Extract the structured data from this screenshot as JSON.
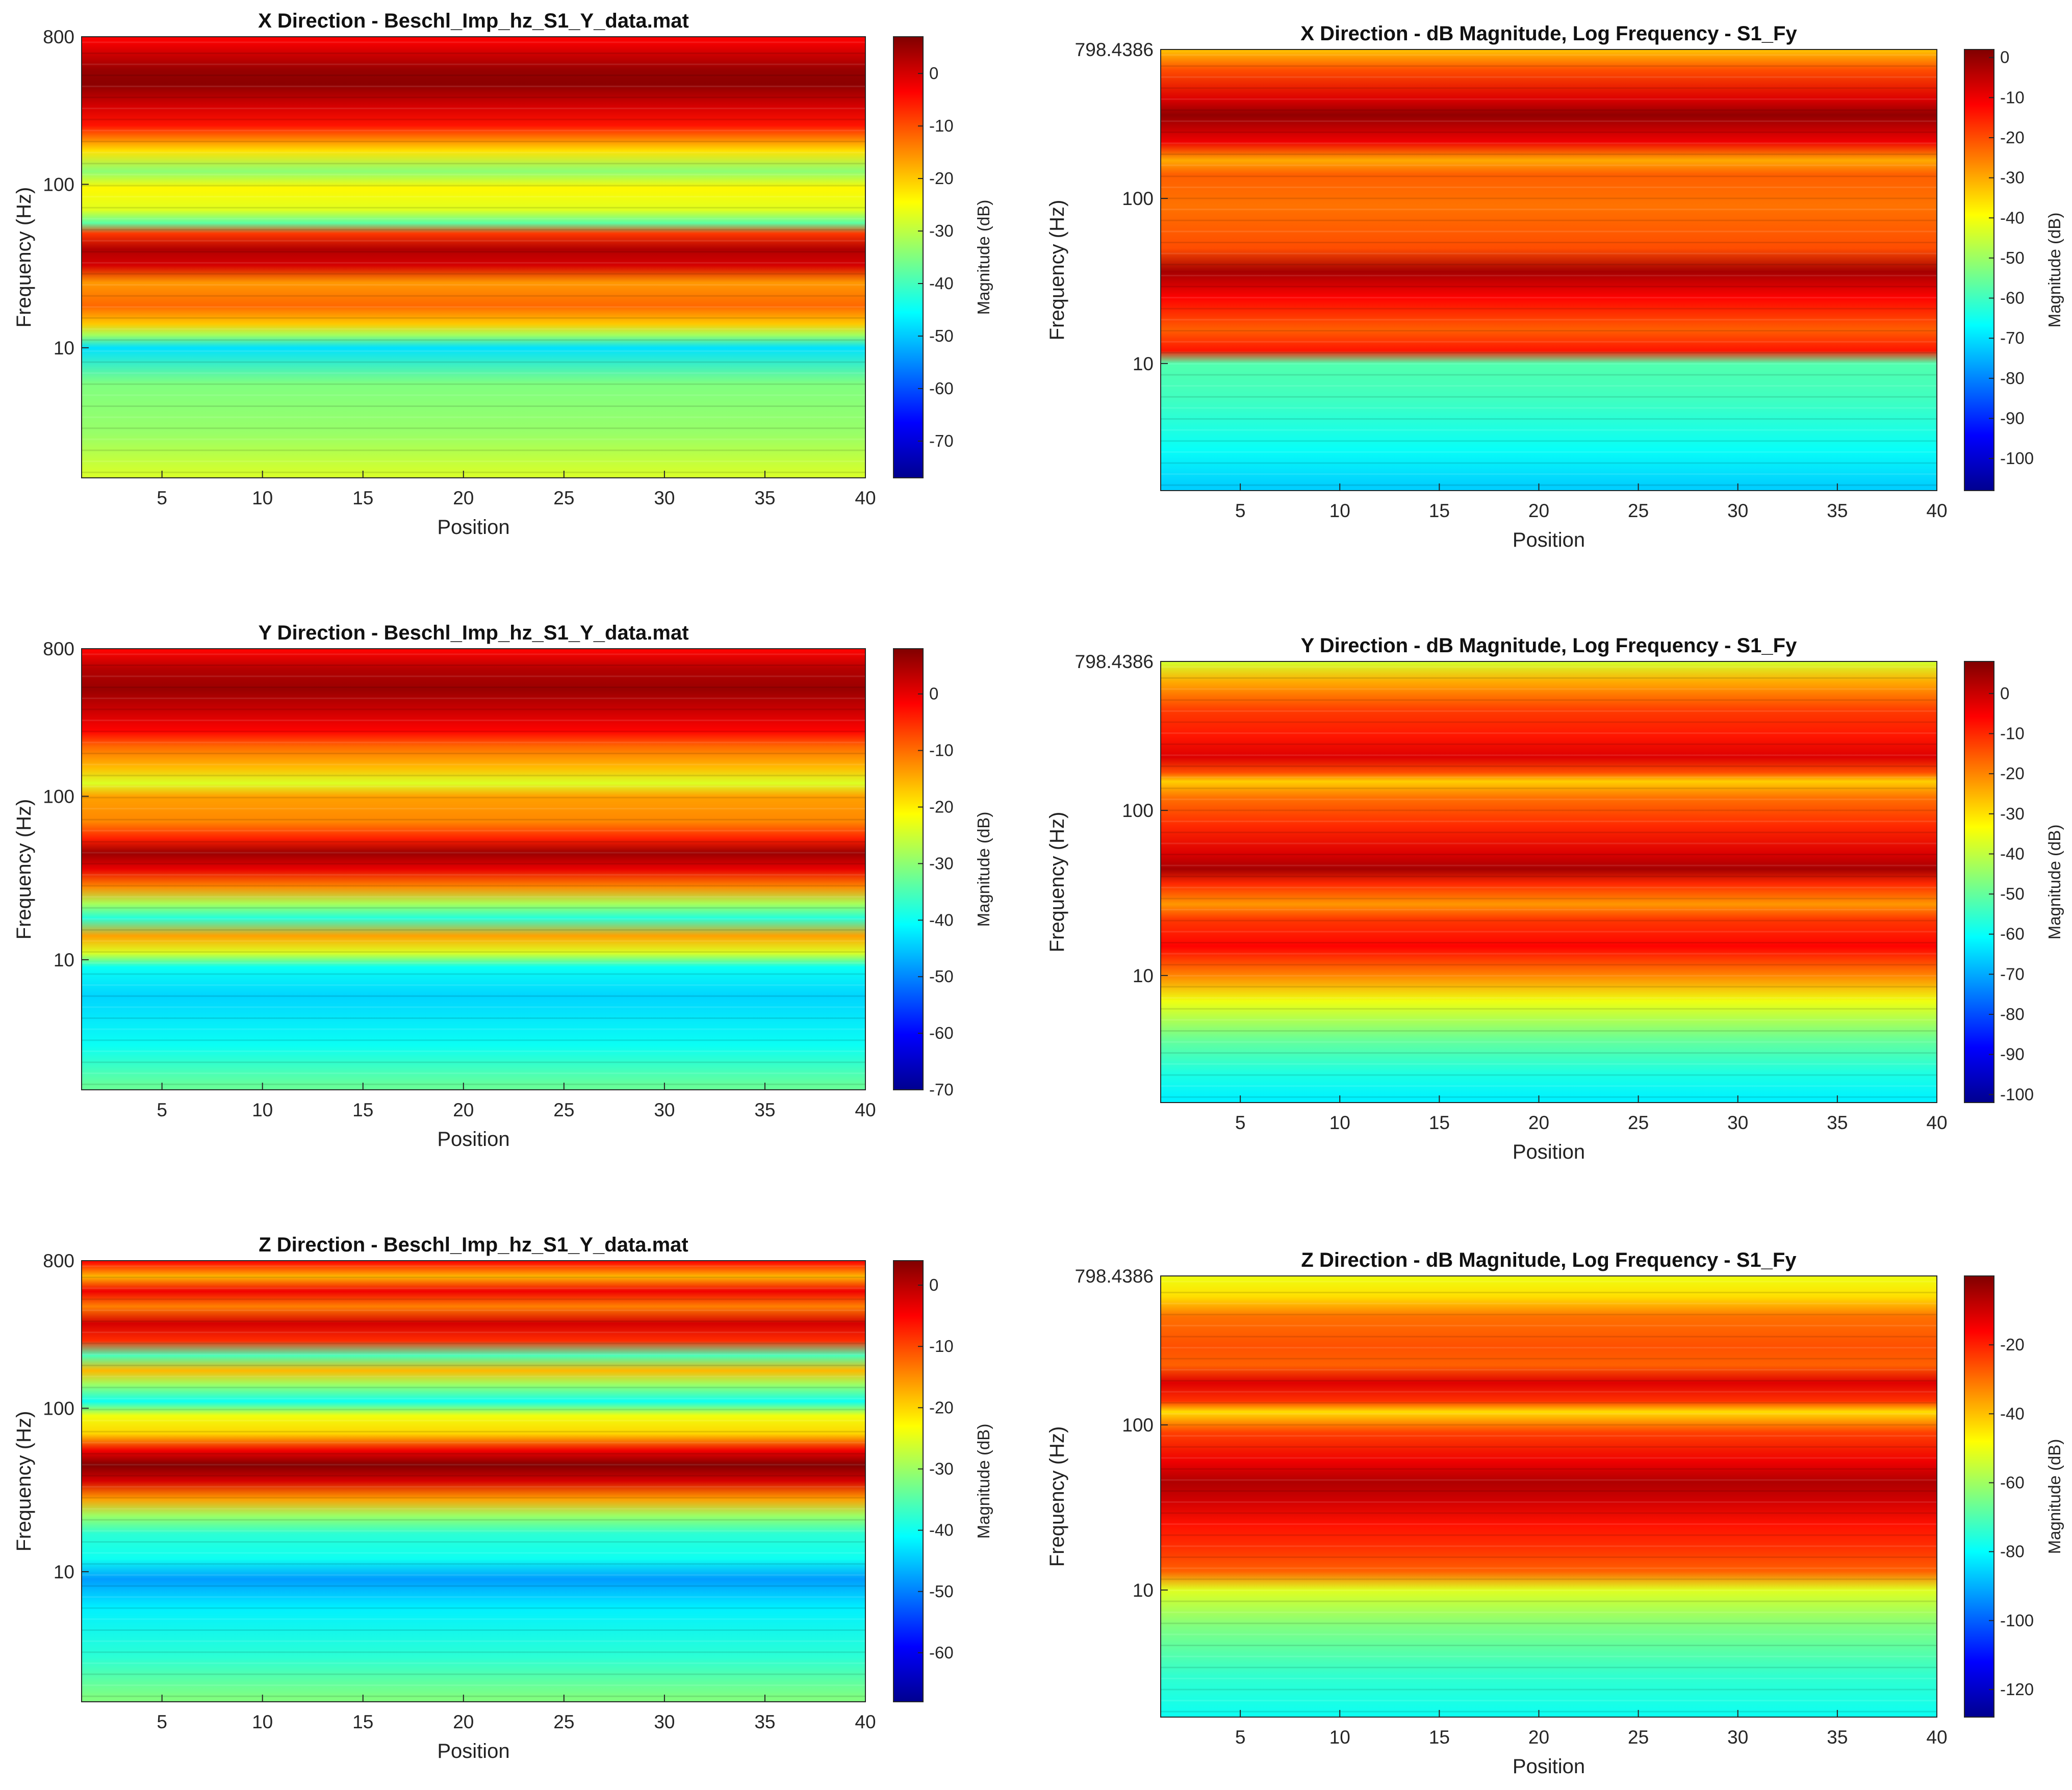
{
  "figure": {
    "background": "#ffffff"
  },
  "colormap": [
    "#00008f",
    "#0000ff",
    "#0080ff",
    "#00ffff",
    "#80ff80",
    "#ffff00",
    "#ff8000",
    "#ff0000",
    "#800000"
  ],
  "chart_data": [
    {
      "type": "heatmap",
      "title": "X Direction - Beschl_Imp_hz_S1_Y_data.mat",
      "xlabel": "Position",
      "ylabel": "Frequency (Hz)",
      "xlim": [
        1,
        40
      ],
      "yscale": "log",
      "ylim": [
        1.6,
        800
      ],
      "xticks": [
        5,
        10,
        15,
        20,
        25,
        30,
        35,
        40
      ],
      "xticklabels": [
        "5",
        "10",
        "15",
        "20",
        "25",
        "30",
        "35",
        "40"
      ],
      "yticks": [
        800,
        100,
        10
      ],
      "yticklabels": [
        "800",
        "100",
        "10"
      ],
      "colorbar": {
        "label": "Magnitude (dB)",
        "range": [
          -77,
          7
        ],
        "ticks": [
          0,
          -10,
          -20,
          -30,
          -40,
          -50,
          -60,
          -70
        ],
        "ticklabels": [
          "0",
          "-10",
          "-20",
          "-30",
          "-40",
          "-50",
          "-60",
          "-70"
        ]
      },
      "bands": [
        {
          "f": 750,
          "level": -3
        },
        {
          "f": 500,
          "level": 5
        },
        {
          "f": 410,
          "level": 6
        },
        {
          "f": 300,
          "level": 0
        },
        {
          "f": 230,
          "level": -5
        },
        {
          "f": 190,
          "level": -14
        },
        {
          "f": 160,
          "level": -22
        },
        {
          "f": 120,
          "level": -34
        },
        {
          "f": 95,
          "level": -24
        },
        {
          "f": 70,
          "level": -27
        },
        {
          "f": 58,
          "level": -38
        },
        {
          "f": 50,
          "level": -8
        },
        {
          "f": 40,
          "level": 3
        },
        {
          "f": 32,
          "level": 0
        },
        {
          "f": 25,
          "level": -16
        },
        {
          "f": 18,
          "level": -12
        },
        {
          "f": 14,
          "level": -20
        },
        {
          "f": 12,
          "level": -32
        },
        {
          "f": 10,
          "level": -48
        },
        {
          "f": 6,
          "level": -35
        },
        {
          "f": 3,
          "level": -33
        },
        {
          "f": 1.7,
          "level": -28
        }
      ]
    },
    {
      "type": "heatmap",
      "title": "X Direction - dB Magnitude, Log Frequency - S1_Fy",
      "xlabel": "Position",
      "ylabel": "Frequency (Hz)",
      "xlim": [
        1,
        40
      ],
      "yscale": "log",
      "ylim": [
        1.7,
        798.4386
      ],
      "xticks": [
        5,
        10,
        15,
        20,
        25,
        30,
        35,
        40
      ],
      "xticklabels": [
        "5",
        "10",
        "15",
        "20",
        "25",
        "30",
        "35",
        "40"
      ],
      "yticks": [
        798.4386,
        100,
        10
      ],
      "yticklabels": [
        "798.4386",
        "100",
        "10"
      ],
      "colorbar": {
        "label": "Magnitude (dB)",
        "range": [
          -108,
          2
        ],
        "ticks": [
          0,
          -10,
          -20,
          -30,
          -40,
          -50,
          -60,
          -70,
          -80,
          -90,
          -100
        ],
        "ticklabels": [
          "0",
          "-10",
          "-20",
          "-30",
          "-40",
          "-50",
          "-60",
          "-70",
          "-80",
          "-90",
          "-100"
        ]
      },
      "bands": [
        {
          "f": 780,
          "level": -32
        },
        {
          "f": 600,
          "level": -20
        },
        {
          "f": 400,
          "level": -8
        },
        {
          "f": 320,
          "level": 0
        },
        {
          "f": 220,
          "level": -10
        },
        {
          "f": 170,
          "level": -30
        },
        {
          "f": 140,
          "level": -22
        },
        {
          "f": 90,
          "level": -24
        },
        {
          "f": 50,
          "level": -20
        },
        {
          "f": 36,
          "level": -2
        },
        {
          "f": 25,
          "level": -12
        },
        {
          "f": 16,
          "level": -22
        },
        {
          "f": 12,
          "level": -14
        },
        {
          "f": 10,
          "level": -58
        },
        {
          "f": 6,
          "level": -60
        },
        {
          "f": 3,
          "level": -66
        },
        {
          "f": 1.8,
          "level": -72
        }
      ]
    },
    {
      "type": "heatmap",
      "title": "Y Direction - Beschl_Imp_hz_S1_Y_data.mat",
      "xlabel": "Position",
      "ylabel": "Frequency (Hz)",
      "xlim": [
        1,
        40
      ],
      "yscale": "log",
      "ylim": [
        1.6,
        800
      ],
      "xticks": [
        5,
        10,
        15,
        20,
        25,
        30,
        35,
        40
      ],
      "xticklabels": [
        "5",
        "10",
        "15",
        "20",
        "25",
        "30",
        "35",
        "40"
      ],
      "yticks": [
        800,
        100,
        10
      ],
      "yticklabels": [
        "800",
        "100",
        "10"
      ],
      "colorbar": {
        "label": "Magnitude (dB)",
        "range": [
          -70,
          8
        ],
        "ticks": [
          0,
          -10,
          -20,
          -30,
          -40,
          -50,
          -60,
          -70
        ],
        "ticklabels": [
          "0",
          "-10",
          "-20",
          "-30",
          "-40",
          "-50",
          "-60",
          "-70"
        ]
      },
      "bands": [
        {
          "f": 780,
          "level": -2
        },
        {
          "f": 600,
          "level": 4
        },
        {
          "f": 450,
          "level": 6
        },
        {
          "f": 330,
          "level": 2
        },
        {
          "f": 250,
          "level": -2
        },
        {
          "f": 200,
          "level": -10
        },
        {
          "f": 150,
          "level": -16
        },
        {
          "f": 120,
          "level": -24
        },
        {
          "f": 100,
          "level": -14
        },
        {
          "f": 70,
          "level": -12
        },
        {
          "f": 55,
          "level": -4
        },
        {
          "f": 45,
          "level": 6
        },
        {
          "f": 36,
          "level": 0
        },
        {
          "f": 28,
          "level": -12
        },
        {
          "f": 22,
          "level": -28
        },
        {
          "f": 18,
          "level": -38
        },
        {
          "f": 14,
          "level": -14
        },
        {
          "f": 11,
          "level": -24
        },
        {
          "f": 9,
          "level": -40
        },
        {
          "f": 6,
          "level": -44
        },
        {
          "f": 3,
          "level": -40
        },
        {
          "f": 1.7,
          "level": -33
        }
      ]
    },
    {
      "type": "heatmap",
      "title": "Y Direction - dB Magnitude, Log Frequency - S1_Fy",
      "xlabel": "Position",
      "ylabel": "Frequency (Hz)",
      "xlim": [
        1,
        40
      ],
      "yscale": "log",
      "ylim": [
        1.7,
        798.4386
      ],
      "xticks": [
        5,
        10,
        15,
        20,
        25,
        30,
        35,
        40
      ],
      "xticklabels": [
        "5",
        "10",
        "15",
        "20",
        "25",
        "30",
        "35",
        "40"
      ],
      "yticks": [
        798.4386,
        100,
        10
      ],
      "yticklabels": [
        "798.4386",
        "100",
        "10"
      ],
      "colorbar": {
        "label": "Magnitude (dB)",
        "range": [
          -102,
          8
        ],
        "ticks": [
          0,
          -10,
          -20,
          -30,
          -40,
          -50,
          -60,
          -70,
          -80,
          -90,
          -100
        ],
        "ticklabels": [
          "0",
          "-10",
          "-20",
          "-30",
          "-40",
          "-50",
          "-60",
          "-70",
          "-80",
          "-90",
          "-100"
        ]
      },
      "bands": [
        {
          "f": 790,
          "level": -38
        },
        {
          "f": 600,
          "level": -24
        },
        {
          "f": 400,
          "level": -12
        },
        {
          "f": 280,
          "level": -8
        },
        {
          "f": 210,
          "level": -2
        },
        {
          "f": 170,
          "level": -14
        },
        {
          "f": 150,
          "level": -28
        },
        {
          "f": 120,
          "level": -18
        },
        {
          "f": 80,
          "level": -10
        },
        {
          "f": 55,
          "level": -2
        },
        {
          "f": 44,
          "level": 4
        },
        {
          "f": 36,
          "level": -10
        },
        {
          "f": 27,
          "level": -22
        },
        {
          "f": 22,
          "level": -12
        },
        {
          "f": 15,
          "level": -6
        },
        {
          "f": 10,
          "level": -20
        },
        {
          "f": 7,
          "level": -35
        },
        {
          "f": 4,
          "level": -50
        },
        {
          "f": 2.5,
          "level": -58
        },
        {
          "f": 1.8,
          "level": -62
        }
      ]
    },
    {
      "type": "heatmap",
      "title": "Z Direction - Beschl_Imp_hz_S1_Y_data.mat",
      "xlabel": "Position",
      "ylabel": "Frequency (Hz)",
      "xlim": [
        1,
        40
      ],
      "yscale": "log",
      "ylim": [
        1.6,
        800
      ],
      "xticks": [
        5,
        10,
        15,
        20,
        25,
        30,
        35,
        40
      ],
      "xticklabels": [
        "5",
        "10",
        "15",
        "20",
        "25",
        "30",
        "35",
        "40"
      ],
      "yticks": [
        800,
        100,
        10
      ],
      "yticklabels": [
        "800",
        "100",
        "10"
      ],
      "colorbar": {
        "label": "Magnitude (dB)",
        "range": [
          -68,
          4
        ],
        "ticks": [
          0,
          -10,
          -20,
          -30,
          -40,
          -50,
          -60
        ],
        "ticklabels": [
          "0",
          "-10",
          "-20",
          "-30",
          "-40",
          "-50",
          "-60"
        ]
      },
      "bands": [
        {
          "f": 780,
          "level": -6
        },
        {
          "f": 640,
          "level": -18
        },
        {
          "f": 520,
          "level": -4
        },
        {
          "f": 420,
          "level": -14
        },
        {
          "f": 330,
          "level": -2
        },
        {
          "f": 260,
          "level": -8
        },
        {
          "f": 210,
          "level": -36
        },
        {
          "f": 170,
          "level": -18
        },
        {
          "f": 140,
          "level": -30
        },
        {
          "f": 110,
          "level": -40
        },
        {
          "f": 90,
          "level": -24
        },
        {
          "f": 70,
          "level": -20
        },
        {
          "f": 55,
          "level": -4
        },
        {
          "f": 45,
          "level": 4
        },
        {
          "f": 36,
          "level": -2
        },
        {
          "f": 28,
          "level": -16
        },
        {
          "f": 22,
          "level": -30
        },
        {
          "f": 17,
          "level": -38
        },
        {
          "f": 12,
          "level": -40
        },
        {
          "f": 9,
          "level": -48
        },
        {
          "f": 6,
          "level": -42
        },
        {
          "f": 3,
          "level": -38
        },
        {
          "f": 1.7,
          "level": -32
        }
      ]
    },
    {
      "type": "heatmap",
      "title": "Z Direction - dB Magnitude, Log Frequency - S1_Fy",
      "xlabel": "Position",
      "ylabel": "Frequency (Hz)",
      "xlim": [
        1,
        40
      ],
      "yscale": "log",
      "ylim": [
        1.7,
        798.4386
      ],
      "xticks": [
        5,
        10,
        15,
        20,
        25,
        30,
        35,
        40
      ],
      "xticklabels": [
        "5",
        "10",
        "15",
        "20",
        "25",
        "30",
        "35",
        "40"
      ],
      "yticks": [
        798.4386,
        100,
        10
      ],
      "yticklabels": [
        "798.4386",
        "100",
        "10"
      ],
      "colorbar": {
        "label": "Magnitude (dB)",
        "range": [
          -128,
          0
        ],
        "ticks": [
          -20,
          -40,
          -60,
          -80,
          -100,
          -120
        ],
        "ticklabels": [
          "-20",
          "-40",
          "-60",
          "-80",
          "-100",
          "-120"
        ]
      },
      "bands": [
        {
          "f": 790,
          "level": -50
        },
        {
          "f": 600,
          "level": -44
        },
        {
          "f": 450,
          "level": -30
        },
        {
          "f": 300,
          "level": -26
        },
        {
          "f": 230,
          "level": -28
        },
        {
          "f": 180,
          "level": -12
        },
        {
          "f": 140,
          "level": -22
        },
        {
          "f": 120,
          "level": -44
        },
        {
          "f": 90,
          "level": -24
        },
        {
          "f": 60,
          "level": -14
        },
        {
          "f": 45,
          "level": -6
        },
        {
          "f": 35,
          "level": -10
        },
        {
          "f": 25,
          "level": -18
        },
        {
          "f": 18,
          "level": -22
        },
        {
          "f": 13,
          "level": -28
        },
        {
          "f": 10,
          "level": -52
        },
        {
          "f": 6,
          "level": -64
        },
        {
          "f": 3,
          "level": -74
        },
        {
          "f": 1.8,
          "level": -78
        }
      ]
    }
  ]
}
